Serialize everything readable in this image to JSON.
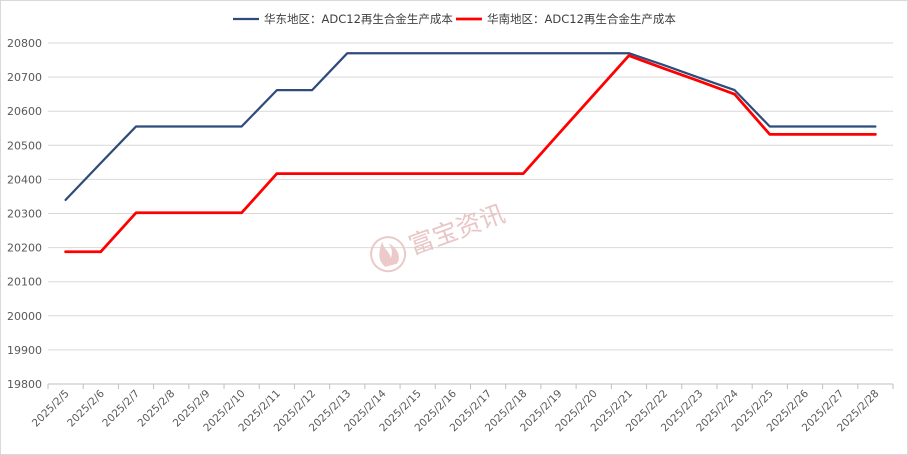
{
  "chart_data": {
    "type": "line",
    "title": "",
    "xlabel": "",
    "ylabel": "",
    "ylim": [
      19800,
      20800
    ],
    "yticks": [
      19800,
      19900,
      20000,
      20100,
      20200,
      20300,
      20400,
      20500,
      20600,
      20700,
      20800
    ],
    "grid": "horizontal",
    "legend": "top-center",
    "categories": [
      "2025/2/5",
      "2025/2/6",
      "2025/2/7",
      "2025/2/8",
      "2025/2/9",
      "2025/2/10",
      "2025/2/11",
      "2025/2/12",
      "2025/2/13",
      "2025/2/14",
      "2025/2/15",
      "2025/2/16",
      "2025/2/17",
      "2025/2/18",
      "2025/2/19",
      "2025/2/20",
      "2025/2/21",
      "2025/2/22",
      "2025/2/23",
      "2025/2/24",
      "2025/2/25",
      "2025/2/26",
      "2025/2/27",
      "2025/2/28"
    ],
    "series": [
      {
        "name": "华东地区：ADC12再生合金生产成本",
        "color": "#2f4b7c",
        "values": [
          20340,
          20448,
          20555,
          20555,
          20555,
          20555,
          20662,
          20662,
          20770,
          20770,
          20770,
          20770,
          20770,
          20770,
          20770,
          20770,
          20770,
          20735,
          20698,
          20662,
          20555,
          20555,
          20555,
          20555
        ]
      },
      {
        "name": "华南地区：ADC12再生合金生产成本",
        "color": "#ff0000",
        "values": [
          20188,
          20188,
          20302,
          20302,
          20302,
          20302,
          20417,
          20417,
          20417,
          20417,
          20417,
          20417,
          20417,
          20417,
          20533,
          20648,
          20763,
          20725,
          20688,
          20650,
          20532,
          20532,
          20532,
          20532
        ]
      }
    ]
  },
  "watermark": {
    "text": "富宝资讯",
    "icon": "flame-logo-icon"
  }
}
